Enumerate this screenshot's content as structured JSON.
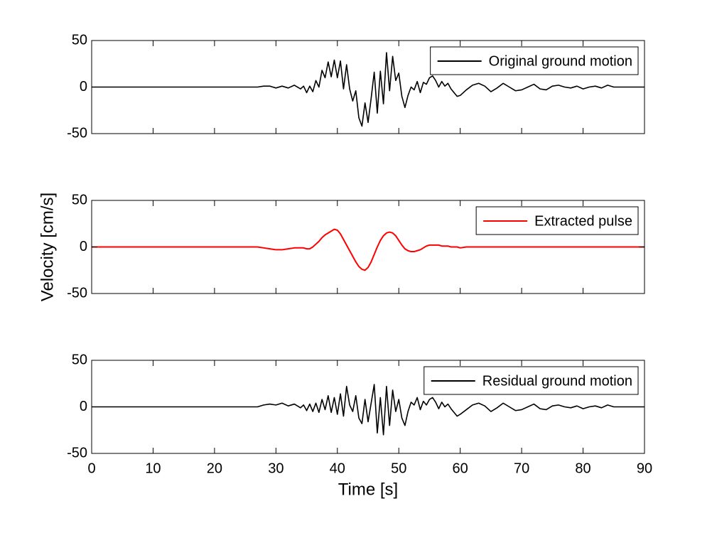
{
  "chart_data": [
    {
      "type": "line",
      "x": [
        0,
        1,
        2,
        3,
        4,
        5,
        6,
        7,
        8,
        9,
        10,
        11,
        12,
        13,
        14,
        15,
        16,
        17,
        18,
        19,
        20,
        21,
        22,
        23,
        24,
        25,
        26,
        27,
        28,
        29,
        30,
        31,
        32,
        33,
        34,
        34.5,
        35,
        35.5,
        36,
        36.5,
        37,
        37.5,
        38,
        38.5,
        39,
        39.5,
        40,
        40.5,
        41,
        41.5,
        42,
        42.5,
        43,
        43.5,
        44,
        44.5,
        45,
        45.5,
        46,
        46.5,
        47,
        47.5,
        48,
        48.5,
        49,
        49.5,
        50,
        50.5,
        51,
        51.5,
        52,
        52.5,
        53,
        53.5,
        54,
        54.5,
        55,
        55.5,
        56,
        56.5,
        57,
        57.5,
        58,
        58.5,
        59,
        59.5,
        60,
        61,
        62,
        63,
        64,
        65,
        66,
        67,
        68,
        69,
        70,
        71,
        72,
        73,
        74,
        75,
        76,
        77,
        78,
        79,
        80,
        81,
        82,
        83,
        84,
        85,
        86,
        87,
        88,
        89,
        90
      ],
      "series": [
        {
          "name": "Original ground motion",
          "color": "#000000",
          "values": [
            0,
            0,
            0,
            0,
            0,
            0,
            0,
            0,
            0,
            0,
            0,
            0,
            0,
            0,
            0,
            0,
            0,
            0,
            0,
            0,
            0,
            0,
            0,
            0,
            0,
            0,
            0,
            0,
            1,
            1,
            -1,
            1,
            -1,
            2,
            -2,
            1,
            -6,
            1,
            -5,
            7,
            0,
            18,
            10,
            27,
            11,
            29,
            10,
            28,
            -2,
            24,
            -2,
            -15,
            -4,
            -33,
            -42,
            -17,
            -38,
            -12,
            16,
            -28,
            17,
            -18,
            37,
            -4,
            33,
            7,
            15,
            -10,
            -22,
            -9,
            0,
            -3,
            6,
            -6,
            5,
            3,
            10,
            12,
            7,
            0,
            6,
            1,
            4,
            -2,
            -6,
            -10,
            -9,
            -3,
            2,
            4,
            1,
            -5,
            -1,
            4,
            0,
            -4,
            -3,
            0,
            3,
            -2,
            -3,
            1,
            2,
            0,
            -1,
            1,
            -2,
            0,
            1,
            -1,
            2,
            0,
            0,
            0,
            0,
            0,
            0
          ]
        }
      ],
      "xlim": [
        0,
        90
      ],
      "ylim": [
        -50,
        50
      ],
      "yticks": [
        -50,
        0,
        50
      ],
      "legend": "upper right"
    },
    {
      "type": "line",
      "x": [
        0,
        1,
        2,
        3,
        4,
        5,
        6,
        7,
        8,
        9,
        10,
        11,
        12,
        13,
        14,
        15,
        16,
        17,
        18,
        19,
        20,
        21,
        22,
        23,
        24,
        25,
        26,
        27,
        28,
        29,
        30,
        31,
        32,
        33,
        34,
        34.5,
        35,
        35.5,
        36,
        36.5,
        37,
        37.5,
        38,
        38.5,
        39,
        39.5,
        40,
        40.5,
        41,
        41.5,
        42,
        42.5,
        43,
        43.5,
        44,
        44.5,
        45,
        45.5,
        46,
        46.5,
        47,
        47.5,
        48,
        48.5,
        49,
        49.5,
        50,
        50.5,
        51,
        51.5,
        52,
        52.5,
        53,
        53.5,
        54,
        54.5,
        55,
        55.5,
        56,
        56.5,
        57,
        57.5,
        58,
        58.5,
        59,
        59.5,
        60,
        61,
        62,
        63,
        64,
        65,
        66,
        67,
        68,
        69,
        70,
        71,
        72,
        73,
        74,
        75,
        76,
        77,
        78,
        79,
        80,
        81,
        82,
        83,
        84,
        85,
        86,
        87,
        88,
        89,
        90
      ],
      "series": [
        {
          "name": "Extracted pulse",
          "color": "#ff0000",
          "values": [
            0,
            0,
            0,
            0,
            0,
            0,
            0,
            0,
            0,
            0,
            0,
            0,
            0,
            0,
            0,
            0,
            0,
            0,
            0,
            0,
            0,
            0,
            0,
            0,
            0,
            0,
            0,
            0,
            -1,
            -2,
            -3,
            -3,
            -2,
            -1,
            -1,
            -1,
            -2,
            -2,
            0,
            3,
            6,
            10,
            13,
            15,
            17,
            19,
            18,
            14,
            8,
            2,
            -4,
            -10,
            -16,
            -21,
            -24,
            -25,
            -22,
            -16,
            -8,
            0,
            7,
            12,
            15,
            16,
            15,
            12,
            7,
            2,
            -2,
            -4,
            -5,
            -5,
            -4,
            -3,
            -1,
            1,
            2,
            2,
            2,
            2,
            1,
            1,
            1,
            0,
            0,
            0,
            -1,
            0,
            0,
            0,
            0,
            0,
            0,
            0,
            0,
            0,
            0,
            0,
            0,
            0,
            0,
            0,
            0,
            0,
            0,
            0,
            0,
            0,
            0,
            0,
            0,
            0,
            0,
            0,
            0,
            0,
            0
          ]
        }
      ],
      "xlim": [
        0,
        90
      ],
      "ylim": [
        -50,
        50
      ],
      "yticks": [
        -50,
        0,
        50
      ],
      "legend": "upper right",
      "ylabel": "Velocity [cm/s]"
    },
    {
      "type": "line",
      "x": [
        0,
        1,
        2,
        3,
        4,
        5,
        6,
        7,
        8,
        9,
        10,
        11,
        12,
        13,
        14,
        15,
        16,
        17,
        18,
        19,
        20,
        21,
        22,
        23,
        24,
        25,
        26,
        27,
        28,
        29,
        30,
        31,
        32,
        33,
        34,
        34.5,
        35,
        35.5,
        36,
        36.5,
        37,
        37.5,
        38,
        38.5,
        39,
        39.5,
        40,
        40.5,
        41,
        41.5,
        42,
        42.5,
        43,
        43.5,
        44,
        44.5,
        45,
        45.5,
        46,
        46.5,
        47,
        47.5,
        48,
        48.5,
        49,
        49.5,
        50,
        50.5,
        51,
        51.5,
        52,
        52.5,
        53,
        53.5,
        54,
        54.5,
        55,
        55.5,
        56,
        56.5,
        57,
        57.5,
        58,
        58.5,
        59,
        59.5,
        60,
        61,
        62,
        63,
        64,
        65,
        66,
        67,
        68,
        69,
        70,
        71,
        72,
        73,
        74,
        75,
        76,
        77,
        78,
        79,
        80,
        81,
        82,
        83,
        84,
        85,
        86,
        87,
        88,
        89,
        90
      ],
      "series": [
        {
          "name": "Residual ground motion",
          "color": "#000000",
          "values": [
            0,
            0,
            0,
            0,
            0,
            0,
            0,
            0,
            0,
            0,
            0,
            0,
            0,
            0,
            0,
            0,
            0,
            0,
            0,
            0,
            0,
            0,
            0,
            0,
            0,
            0,
            0,
            0,
            2,
            3,
            2,
            4,
            1,
            3,
            -1,
            2,
            -4,
            3,
            -5,
            4,
            -6,
            8,
            -3,
            12,
            -6,
            10,
            -8,
            14,
            -10,
            22,
            2,
            -5,
            12,
            -12,
            -18,
            8,
            -16,
            4,
            24,
            -28,
            10,
            -30,
            22,
            -20,
            18,
            -5,
            8,
            -12,
            -20,
            -5,
            5,
            2,
            10,
            -3,
            6,
            2,
            8,
            10,
            5,
            -2,
            5,
            0,
            3,
            -2,
            -6,
            -10,
            -8,
            -3,
            2,
            4,
            1,
            -5,
            -1,
            4,
            0,
            -4,
            -3,
            0,
            3,
            -2,
            -3,
            1,
            2,
            0,
            -1,
            1,
            -2,
            0,
            1,
            -1,
            2,
            0,
            0,
            0,
            0,
            0,
            0
          ]
        }
      ],
      "xlim": [
        0,
        90
      ],
      "ylim": [
        -50,
        50
      ],
      "yticks": [
        -50,
        0,
        50
      ],
      "xticks": [
        0,
        10,
        20,
        30,
        40,
        50,
        60,
        70,
        80,
        90
      ],
      "legend": "upper right",
      "xlabel": "Time [s]"
    }
  ]
}
